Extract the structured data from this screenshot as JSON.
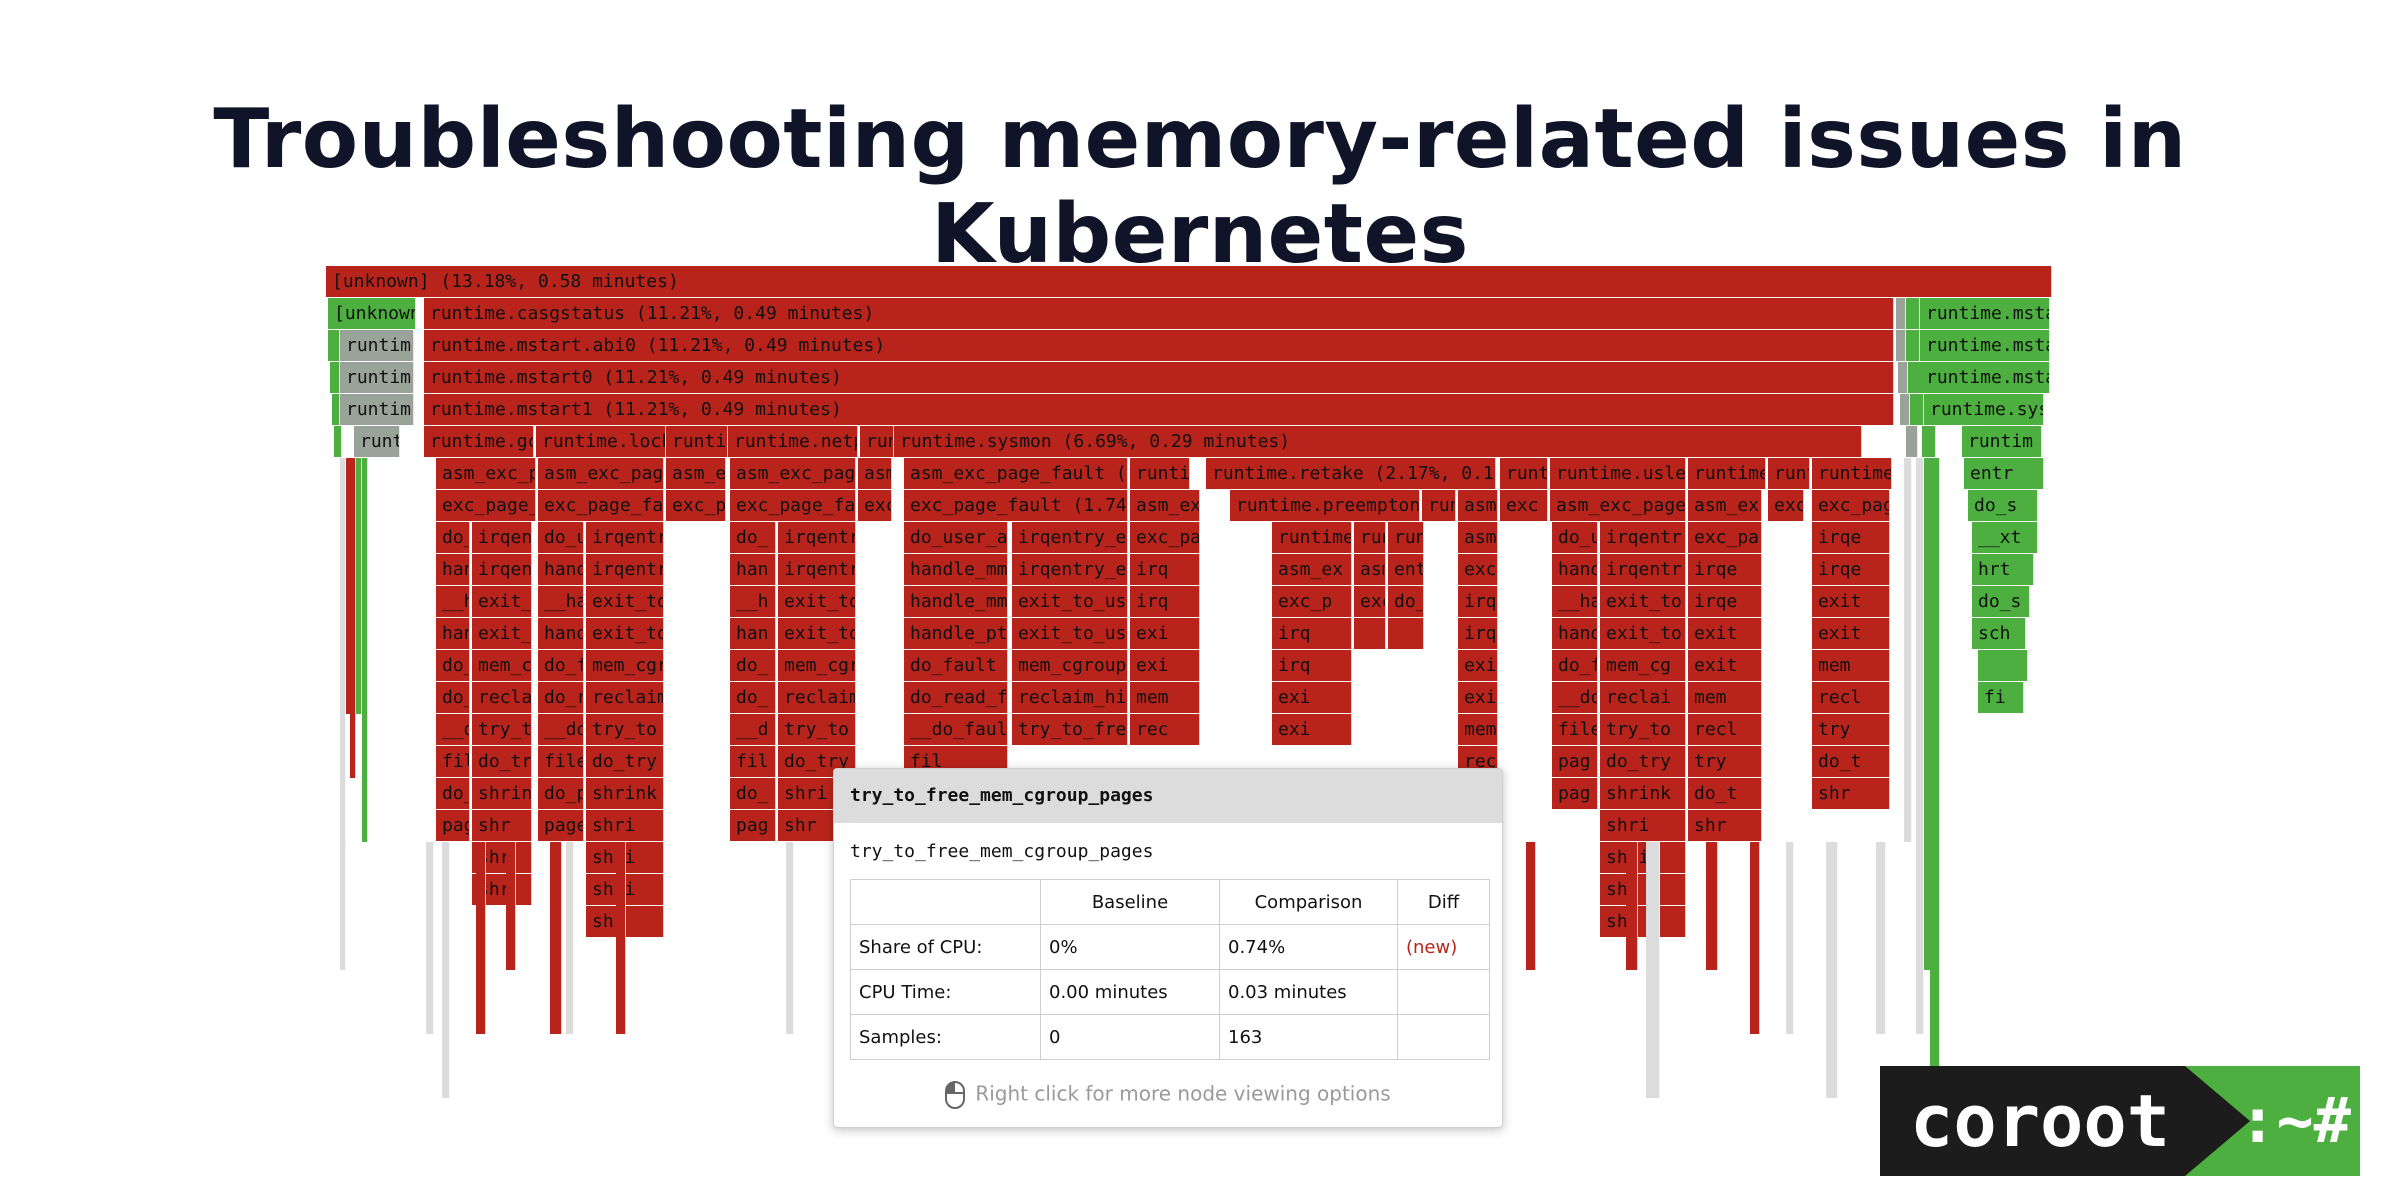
{
  "title": "Troubleshooting memory-related issues in Kubernetes",
  "colors": {
    "hot": "#b8241c",
    "new": "#4caf3f",
    "neutral": "#9aa39a",
    "faint": "#dcdcdc"
  },
  "flame_labels": {
    "root": "[unknown] (13.18%, 0.58 minutes)",
    "unknown_left": "[unknown",
    "casgstatus": "runtime.casgstatus (11.21%, 0.49 minutes)",
    "mstart_abi0": "runtime.mstart.abi0 (11.21%, 0.49 minutes)",
    "mstart0": "runtime.mstart0 (11.21%, 0.49 minutes)",
    "mstart1": "runtime.mstart1 (11.21%, 0.49 minutes)",
    "sysmon": "runtime.sysmon (6.69%, 0.29 minutes)",
    "runtim": "runtim",
    "runti": "runti",
    "right_mstart": "runtime.msta",
    "right_sys": "runtime.sys",
    "right_runtim": "runtim",
    "gc": "runtime.gc",
    "lock": "runtime.lock",
    "runti2": "runti",
    "netp": "runtime.netp",
    "run": "run",
    "retake": "runtime.retake (2.17%, 0.10",
    "runti3": "runti",
    "usleep": "runtime.usle",
    "runtime_r1": "runtime",
    "runt_r2": "runt",
    "runtime_r3": "runtime.",
    "asm_exc_pa": "asm_exc_pa",
    "asm_exc_page": "asm_exc_page",
    "asm_e": "asm_e",
    "asm_exc_page2": "asm_exc_page",
    "asm": "asm",
    "asm_exc_page_fault": "asm_exc_page_fault (1.",
    "runtim2": "runtim",
    "entr": "entr",
    "exc_page_f": "exc_page_f",
    "exc_page_fa": "exc_page_fa",
    "exc_p": "exc_p",
    "exc_page_fa2": "exc_page_fa",
    "exc": "exc",
    "exc_page_fault": "exc_page_fault (1.74%,",
    "asm_ex": "asm_ex",
    "preemptone": "runtime.preemptone",
    "do_s": "do_s",
    "do_u": "do_u",
    "irqent": "irqent",
    "irqentr": "irqentr",
    "do_user_ad": "do_user_ad",
    "irqentry_ex": "irqentry_ex",
    "exc_pa": "exc_pa",
    "handle_mm": "handle_mm_",
    "exit_to_use": "exit_to_use",
    "handle_pte": "handle_pte",
    "do_fault": "do_fault",
    "mem_cgroup": "mem_cgroup_",
    "do_read_fa": "do_read_fa",
    "reclaim_hig": "reclaim_hig",
    "do_faul": "__do_faul",
    "try_to_free": "try_to_free",
    "hand": "hand",
    "exit_t": "exit_t",
    "mem_cg": "mem_cg",
    "reclai": "reclai",
    "try_to": "try_to",
    "do_try": "do_try",
    "shrink": "shrink",
    "fil": "fil",
    "file": "file",
    "pag": "pag",
    "page": "page",
    "shr": "shr",
    "shri": "shri",
    "xt": "__xt",
    "hrt": "hrt",
    "sch": "sch",
    "fi": "fi",
    "usleep_col": "asm_exc_page",
    "exc_page_fa3": "exc_page_fa"
  },
  "tooltip": {
    "header": "try_to_free_mem_cgroup_pages",
    "subtitle": "try_to_free_mem_cgroup_pages",
    "columns": [
      "",
      "Baseline",
      "Comparison",
      "Diff"
    ],
    "rows": [
      {
        "label": "Share of CPU:",
        "baseline": "0%",
        "comparison": "0.74%",
        "diff": "(new)"
      },
      {
        "label": "CPU Time:",
        "baseline": "0.00 minutes",
        "comparison": "0.03 minutes",
        "diff": ""
      },
      {
        "label": "Samples:",
        "baseline": "0",
        "comparison": "163",
        "diff": ""
      }
    ],
    "footer": "Right click for more node viewing options",
    "diff_color": "#b8241c",
    "icon": "mouse-icon"
  },
  "logo": {
    "word": "coroot",
    "prompt": ":~#",
    "dark": "#1c1c1c",
    "green": "#4caf3f"
  }
}
